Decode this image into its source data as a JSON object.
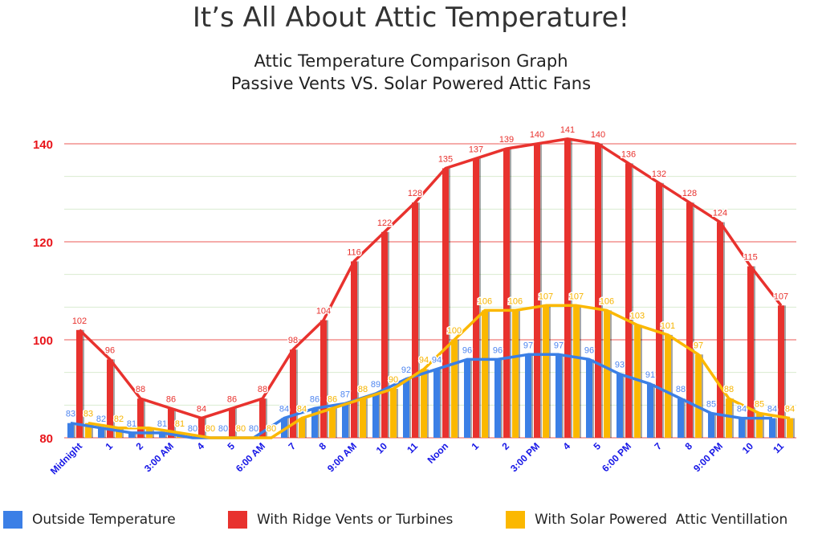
{
  "header": {
    "title": "It’s All About Attic Temperature!",
    "subtitle_line1": "Attic Temperature Comparison Graph",
    "subtitle_line2": "Passive Vents VS. Solar Powered Attic Fans"
  },
  "chart_data": {
    "type": "bar",
    "title": "Attic Temperature Comparison Graph",
    "subtitle": "Passive Vents VS. Solar Powered Attic Fans",
    "categories": [
      "Midnight",
      "1",
      "2",
      "3:00 AM",
      "4",
      "5",
      "6:00 AM",
      "7",
      "8",
      "9:00 AM",
      "10",
      "11",
      "Noon",
      "1",
      "2",
      "3:00 PM",
      "4",
      "5",
      "6:00 PM",
      "7",
      "8",
      "9:00 PM",
      "10",
      "11"
    ],
    "ylim": [
      80,
      143
    ],
    "yticks": [
      80,
      100,
      120,
      140
    ],
    "grid": true,
    "legend_position": "bottom",
    "series": [
      {
        "name": "Outside Temperature",
        "color": "#3b7fe6",
        "values": [
          83,
          82,
          81,
          81,
          80,
          80,
          80,
          84,
          86,
          87,
          89,
          92,
          94,
          96,
          96,
          97,
          97,
          96,
          93,
          91,
          88,
          85,
          84,
          84
        ]
      },
      {
        "name": "With Ridge Vents or Turbines",
        "color": "#e8322e",
        "values": [
          102,
          96,
          88,
          86,
          84,
          86,
          88,
          98,
          104,
          116,
          122,
          128,
          135,
          137,
          139,
          140,
          141,
          140,
          136,
          132,
          128,
          124,
          115,
          107
        ]
      },
      {
        "name": "With Solar Powered  Attic Ventillation",
        "color": "#fbb800",
        "values": [
          83,
          82,
          82,
          81,
          80,
          80,
          80,
          84,
          86,
          88,
          90,
          94,
          100,
          106,
          106,
          107,
          107,
          106,
          103,
          101,
          97,
          88,
          85,
          84
        ]
      }
    ],
    "label_colors": {
      "Outside Temperature": "#4f86f0",
      "With Ridge Vents or Turbines": "#e8322e",
      "With Solar Powered  Attic Ventillation": "#f6b400"
    },
    "tick_label_colors": {
      "y": "#e8141a",
      "x": "#1616e6"
    }
  }
}
